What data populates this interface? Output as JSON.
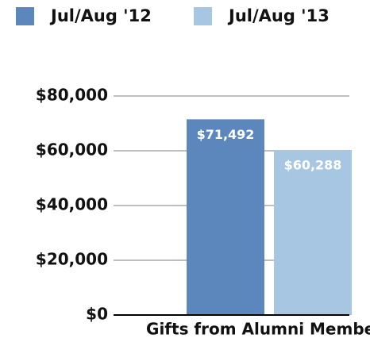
{
  "chart_data": {
    "type": "bar",
    "categories": [
      "Gifts from Alumni Members"
    ],
    "series": [
      {
        "name": "Jul/Aug '12",
        "color": "#5b87bd",
        "values": [
          71492
        ],
        "value_labels": [
          "$71,492"
        ]
      },
      {
        "name": "Jul/Aug '13",
        "color": "#a6c6e2",
        "values": [
          60288
        ],
        "value_labels": [
          "$60,288"
        ]
      }
    ],
    "ylim": [
      0,
      80000
    ],
    "yticks": [
      {
        "value": 0,
        "label": "$0"
      },
      {
        "value": 20000,
        "label": "$20,000"
      },
      {
        "value": 40000,
        "label": "$40,000"
      },
      {
        "value": 60000,
        "label": "$60,000"
      },
      {
        "value": 80000,
        "label": "$80,000"
      }
    ],
    "grid": true,
    "legend": "top"
  }
}
